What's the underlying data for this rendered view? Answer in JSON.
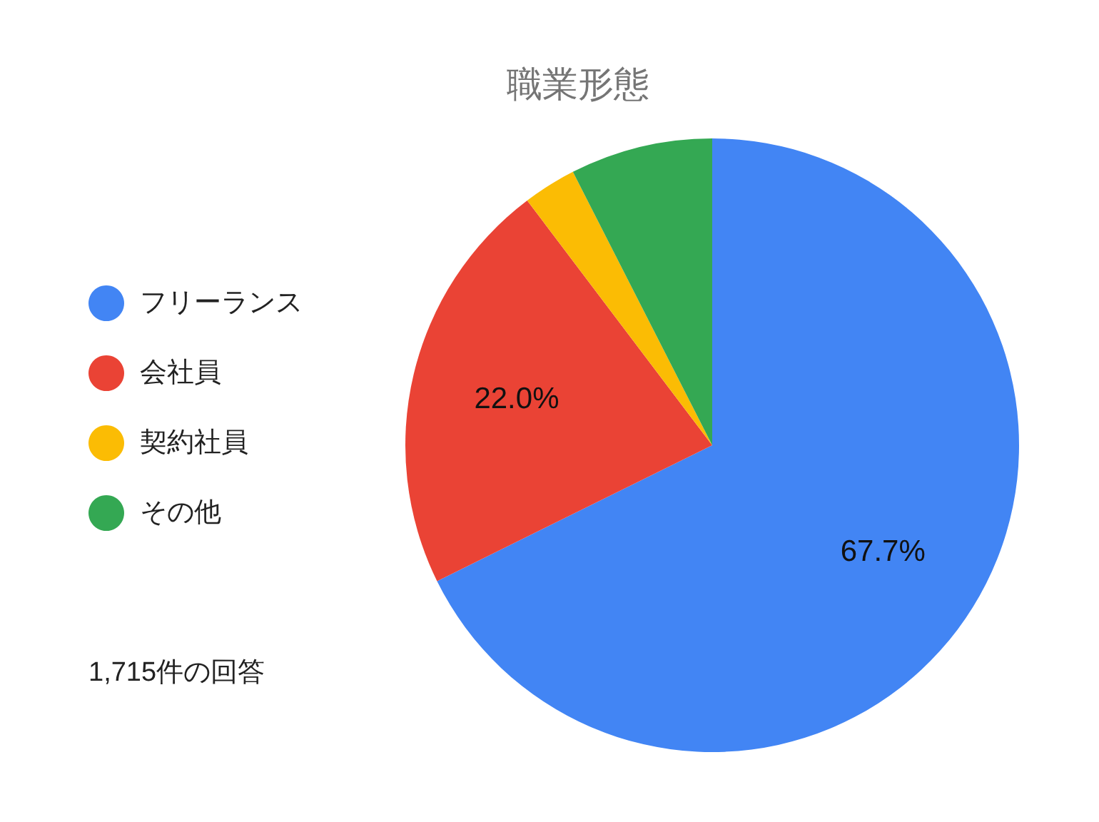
{
  "chart_data": {
    "type": "pie",
    "title": "職業形態",
    "categories": [
      "フリーランス",
      "会社員",
      "契約社員",
      "その他"
    ],
    "values": [
      67.7,
      22.0,
      2.8,
      7.5
    ],
    "colors": [
      "#4285f4",
      "#ea4335",
      "#fbbc04",
      "#34a853"
    ],
    "value_labels": [
      "67.7%",
      "22.0%",
      null,
      null
    ],
    "legend": "left",
    "annotations": [
      "1,715件の回答"
    ]
  }
}
